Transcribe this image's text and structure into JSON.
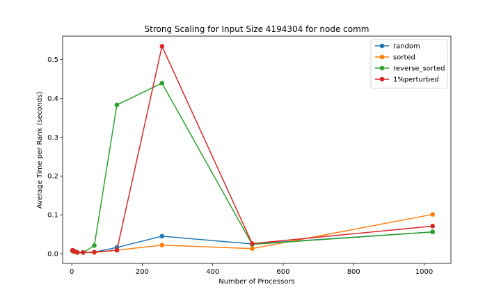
{
  "chart_data": {
    "type": "line",
    "title": "Strong Scaling for Input Size 4194304 for node comm",
    "xlabel": "Number of Processors",
    "ylabel": "Average Time per Rank (seconds)",
    "xlim": [
      -26,
      1076
    ],
    "ylim": [
      -0.025,
      0.56
    ],
    "x_ticks": [
      0,
      200,
      400,
      600,
      800,
      1000
    ],
    "y_ticks": [
      0.0,
      0.1,
      0.2,
      0.3,
      0.4,
      0.5
    ],
    "x_tick_labels": [
      "0",
      "200",
      "400",
      "600",
      "800",
      "1000"
    ],
    "y_tick_labels": [
      "0.0",
      "0.1",
      "0.2",
      "0.3",
      "0.4",
      "0.5"
    ],
    "grid": false,
    "legend_position": "top-right",
    "x": [
      2,
      4,
      8,
      16,
      32,
      64,
      128,
      256,
      512,
      1024
    ],
    "series": [
      {
        "name": "random",
        "color": "#1f77b4",
        "values": [
          0.007,
          0.006,
          0.005,
          0.003,
          0.003,
          0.004,
          0.016,
          0.045,
          0.025,
          0.056
        ]
      },
      {
        "name": "sorted",
        "color": "#ff7f0e",
        "values": [
          0.007,
          0.006,
          0.005,
          0.003,
          0.003,
          0.003,
          0.009,
          0.022,
          0.013,
          0.101
        ]
      },
      {
        "name": "reverse_sorted",
        "color": "#2ca02c",
        "values": [
          0.008,
          0.007,
          0.006,
          0.003,
          0.003,
          0.021,
          0.383,
          0.439,
          0.024,
          0.056
        ]
      },
      {
        "name": "1%perturbed",
        "color": "#d62728",
        "values": [
          0.009,
          0.008,
          0.006,
          0.003,
          0.003,
          0.004,
          0.009,
          0.534,
          0.026,
          0.071
        ]
      }
    ]
  }
}
